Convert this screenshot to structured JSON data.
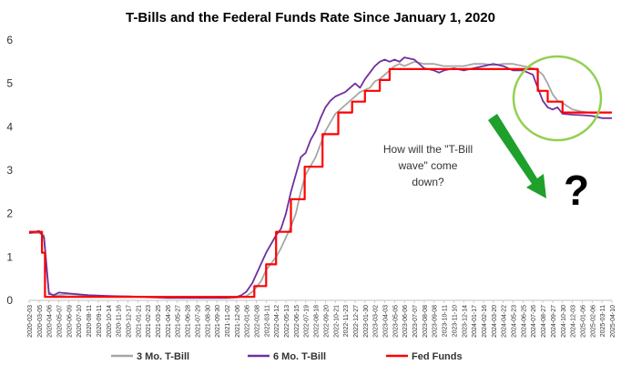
{
  "chart_data": {
    "type": "line",
    "title": "T-Bills and the Federal Funds Rate Since January 1, 2020",
    "xlabel": "",
    "ylabel": "",
    "ylim": [
      0,
      6
    ],
    "yticks": [
      "0",
      "1",
      "2",
      "3",
      "4",
      "5",
      "6"
    ],
    "xtick_labels": [
      "2020-02-03",
      "2020-03-05",
      "2020-04-06",
      "2020-05-07",
      "2020-06-09",
      "2020-07-10",
      "2020-08-11",
      "2020-09-11",
      "2020-10-14",
      "2020-11-16",
      "2020-12-17",
      "2021-01-21",
      "2021-02-23",
      "2021-03-25",
      "2021-04-26",
      "2021-05-27",
      "2021-06-28",
      "2021-07-29",
      "2021-08-30",
      "2021-09-30",
      "2021-11-02",
      "2021-12-06",
      "2022-01-06",
      "2022-02-08",
      "2022-03-11",
      "2022-04-12",
      "2022-05-13",
      "2022-06-15",
      "2022-07-19",
      "2022-08-18",
      "2022-09-20",
      "2022-10-21",
      "2022-11-23",
      "2022-12-27",
      "2023-01-30",
      "2023-03-02",
      "2023-04-03",
      "2023-05-05",
      "2023-06-06",
      "2023-07-07",
      "2023-08-08",
      "2023-09-08",
      "2023-10-11",
      "2023-11-10",
      "2023-12-14",
      "2024-01-17",
      "2024-02-16",
      "2024-03-20",
      "2024-04-22",
      "2024-05-23",
      "2024-06-25",
      "2024-07-26",
      "2024-08-27",
      "2024-09-27",
      "2024-10-30",
      "2024-12-03",
      "2025-01-06",
      "2025-02-06",
      "2025-03-11",
      "2025-04-10"
    ],
    "grid": false,
    "legend_position": "bottom",
    "series": [
      {
        "name": "3 Mo. T-Bill",
        "color": "#a6a6a6",
        "x": [
          0,
          1,
          1.5,
          2,
          2.5,
          3,
          4,
          6,
          8,
          10,
          12,
          14,
          16,
          18,
          20,
          21,
          22,
          22.6,
          23,
          23.5,
          24,
          24.5,
          25,
          25.5,
          26,
          26.5,
          27,
          27.5,
          28,
          28.5,
          29,
          29.5,
          30,
          30.5,
          31,
          31.5,
          32,
          32.5,
          33,
          33.5,
          34,
          34.5,
          35,
          35.5,
          36,
          36.5,
          37,
          37.5,
          38,
          39,
          40,
          41,
          42,
          43,
          44,
          45,
          46,
          47,
          48,
          49,
          50,
          51,
          51.5,
          52,
          52.5,
          53,
          53.5,
          54,
          55,
          56,
          57,
          58,
          59
        ],
        "y": [
          1.55,
          1.55,
          1.5,
          0.2,
          0.1,
          0.12,
          0.14,
          0.11,
          0.09,
          0.09,
          0.07,
          0.05,
          0.05,
          0.05,
          0.05,
          0.06,
          0.1,
          0.2,
          0.3,
          0.45,
          0.7,
          0.85,
          1.0,
          1.2,
          1.45,
          1.7,
          2.0,
          2.5,
          2.9,
          3.1,
          3.3,
          3.6,
          3.9,
          4.1,
          4.3,
          4.4,
          4.5,
          4.6,
          4.7,
          4.8,
          4.85,
          4.9,
          5.05,
          5.1,
          5.2,
          5.3,
          5.4,
          5.45,
          5.4,
          5.5,
          5.45,
          5.45,
          5.4,
          5.4,
          5.4,
          5.45,
          5.45,
          5.42,
          5.45,
          5.45,
          5.4,
          5.35,
          5.3,
          5.2,
          5.0,
          4.75,
          4.6,
          4.55,
          4.4,
          4.35,
          4.32,
          4.33,
          4.33
        ]
      },
      {
        "name": "6 Mo. T-Bill",
        "color": "#7030a0",
        "x": [
          0,
          1,
          1.5,
          2,
          2.5,
          3,
          4,
          6,
          8,
          10,
          12,
          14,
          16,
          18,
          20,
          21,
          21.5,
          22,
          22.6,
          23,
          23.5,
          24,
          24.5,
          25,
          25.5,
          26,
          26.5,
          27,
          27.5,
          28,
          28.5,
          29,
          29.5,
          30,
          30.5,
          31,
          31.5,
          32,
          32.5,
          33,
          33.5,
          34,
          34.5,
          35,
          35.5,
          36,
          36.5,
          37,
          37.5,
          38,
          39,
          40,
          41,
          41.5,
          42,
          43,
          44,
          45,
          46,
          47,
          48,
          49,
          50,
          51,
          51.5,
          52,
          52.5,
          53,
          53.5,
          54,
          55,
          56,
          57,
          58,
          59
        ],
        "y": [
          1.55,
          1.6,
          1.45,
          0.15,
          0.12,
          0.18,
          0.16,
          0.12,
          0.1,
          0.09,
          0.08,
          0.06,
          0.06,
          0.06,
          0.06,
          0.08,
          0.12,
          0.2,
          0.4,
          0.6,
          0.85,
          1.1,
          1.3,
          1.5,
          1.65,
          2.0,
          2.5,
          2.9,
          3.3,
          3.4,
          3.7,
          3.9,
          4.2,
          4.45,
          4.6,
          4.7,
          4.75,
          4.8,
          4.9,
          5.0,
          4.9,
          5.1,
          5.25,
          5.4,
          5.5,
          5.55,
          5.5,
          5.55,
          5.5,
          5.6,
          5.55,
          5.35,
          5.3,
          5.25,
          5.3,
          5.35,
          5.3,
          5.35,
          5.4,
          5.45,
          5.4,
          5.3,
          5.3,
          5.2,
          4.9,
          4.6,
          4.45,
          4.4,
          4.45,
          4.3,
          4.28,
          4.27,
          4.25,
          4.2,
          4.2
        ]
      },
      {
        "name": "Fed Funds",
        "color": "#ff0000",
        "x": [
          0,
          1.3,
          1.3,
          1.6,
          1.6,
          22.8,
          22.8,
          24,
          24,
          25,
          25,
          26.5,
          26.5,
          27.9,
          27.9,
          29.7,
          29.7,
          31.3,
          31.3,
          32.7,
          32.7,
          34,
          34,
          35.5,
          35.5,
          36.5,
          36.5,
          38,
          38,
          51.5,
          51.5,
          52.5,
          52.5,
          54,
          54,
          59
        ],
        "y": [
          1.58,
          1.58,
          1.1,
          1.1,
          0.08,
          0.08,
          0.33,
          0.33,
          0.83,
          0.83,
          1.58,
          1.58,
          2.33,
          2.33,
          3.08,
          3.08,
          3.83,
          3.83,
          4.33,
          4.33,
          4.58,
          4.58,
          4.83,
          4.83,
          5.08,
          5.08,
          5.33,
          5.33,
          5.33,
          5.33,
          4.83,
          4.83,
          4.58,
          4.58,
          4.33,
          4.33
        ]
      }
    ],
    "annotations": {
      "note_lines": [
        "How will the \"T-Bill",
        "wave\" come",
        "down?"
      ],
      "question_mark": "?",
      "arrow_color": "#1fa02b",
      "circle_color": "#92d050"
    }
  }
}
